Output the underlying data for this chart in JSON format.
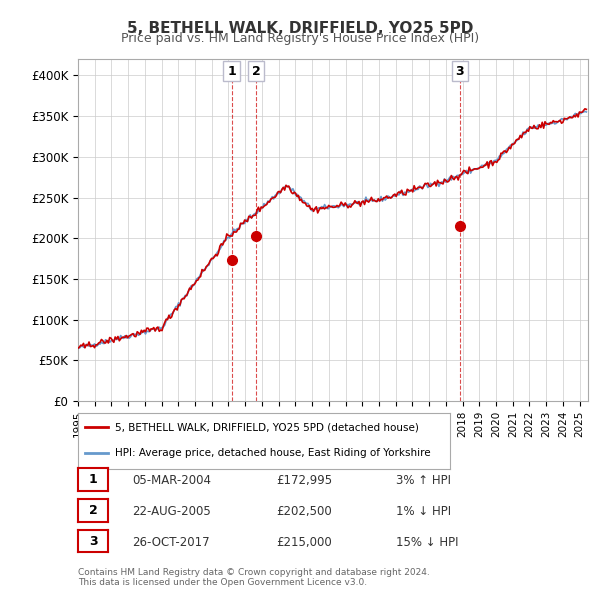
{
  "title": "5, BETHELL WALK, DRIFFIELD, YO25 5PD",
  "subtitle": "Price paid vs. HM Land Registry's House Price Index (HPI)",
  "ylabel": "",
  "ylim": [
    0,
    420000
  ],
  "yticks": [
    0,
    50000,
    100000,
    150000,
    200000,
    250000,
    300000,
    350000,
    400000
  ],
  "ytick_labels": [
    "£0",
    "£50K",
    "£100K",
    "£150K",
    "£200K",
    "£250K",
    "£300K",
    "£350K",
    "£400K"
  ],
  "xlim_start": 1995.0,
  "xlim_end": 2025.5,
  "transactions": [
    {
      "date": 2004.18,
      "price": 172995,
      "label": "1"
    },
    {
      "date": 2005.64,
      "price": 202500,
      "label": "2"
    },
    {
      "date": 2017.82,
      "price": 215000,
      "label": "3"
    }
  ],
  "vlines": [
    2004.18,
    2005.64,
    2017.82
  ],
  "legend_property_label": "5, BETHELL WALK, DRIFFIELD, YO25 5PD (detached house)",
  "legend_hpi_label": "HPI: Average price, detached house, East Riding of Yorkshire",
  "table_rows": [
    {
      "num": "1",
      "date": "05-MAR-2004",
      "price": "£172,995",
      "hpi": "3% ↑ HPI"
    },
    {
      "num": "2",
      "date": "22-AUG-2005",
      "price": "£202,500",
      "hpi": "1% ↓ HPI"
    },
    {
      "num": "3",
      "date": "26-OCT-2017",
      "price": "£215,000",
      "hpi": "15% ↓ HPI"
    }
  ],
  "footnote": "Contains HM Land Registry data © Crown copyright and database right 2024.\nThis data is licensed under the Open Government Licence v3.0.",
  "property_color": "#cc0000",
  "hpi_color": "#6699cc",
  "background_color": "#ffffff",
  "grid_color": "#cccccc"
}
